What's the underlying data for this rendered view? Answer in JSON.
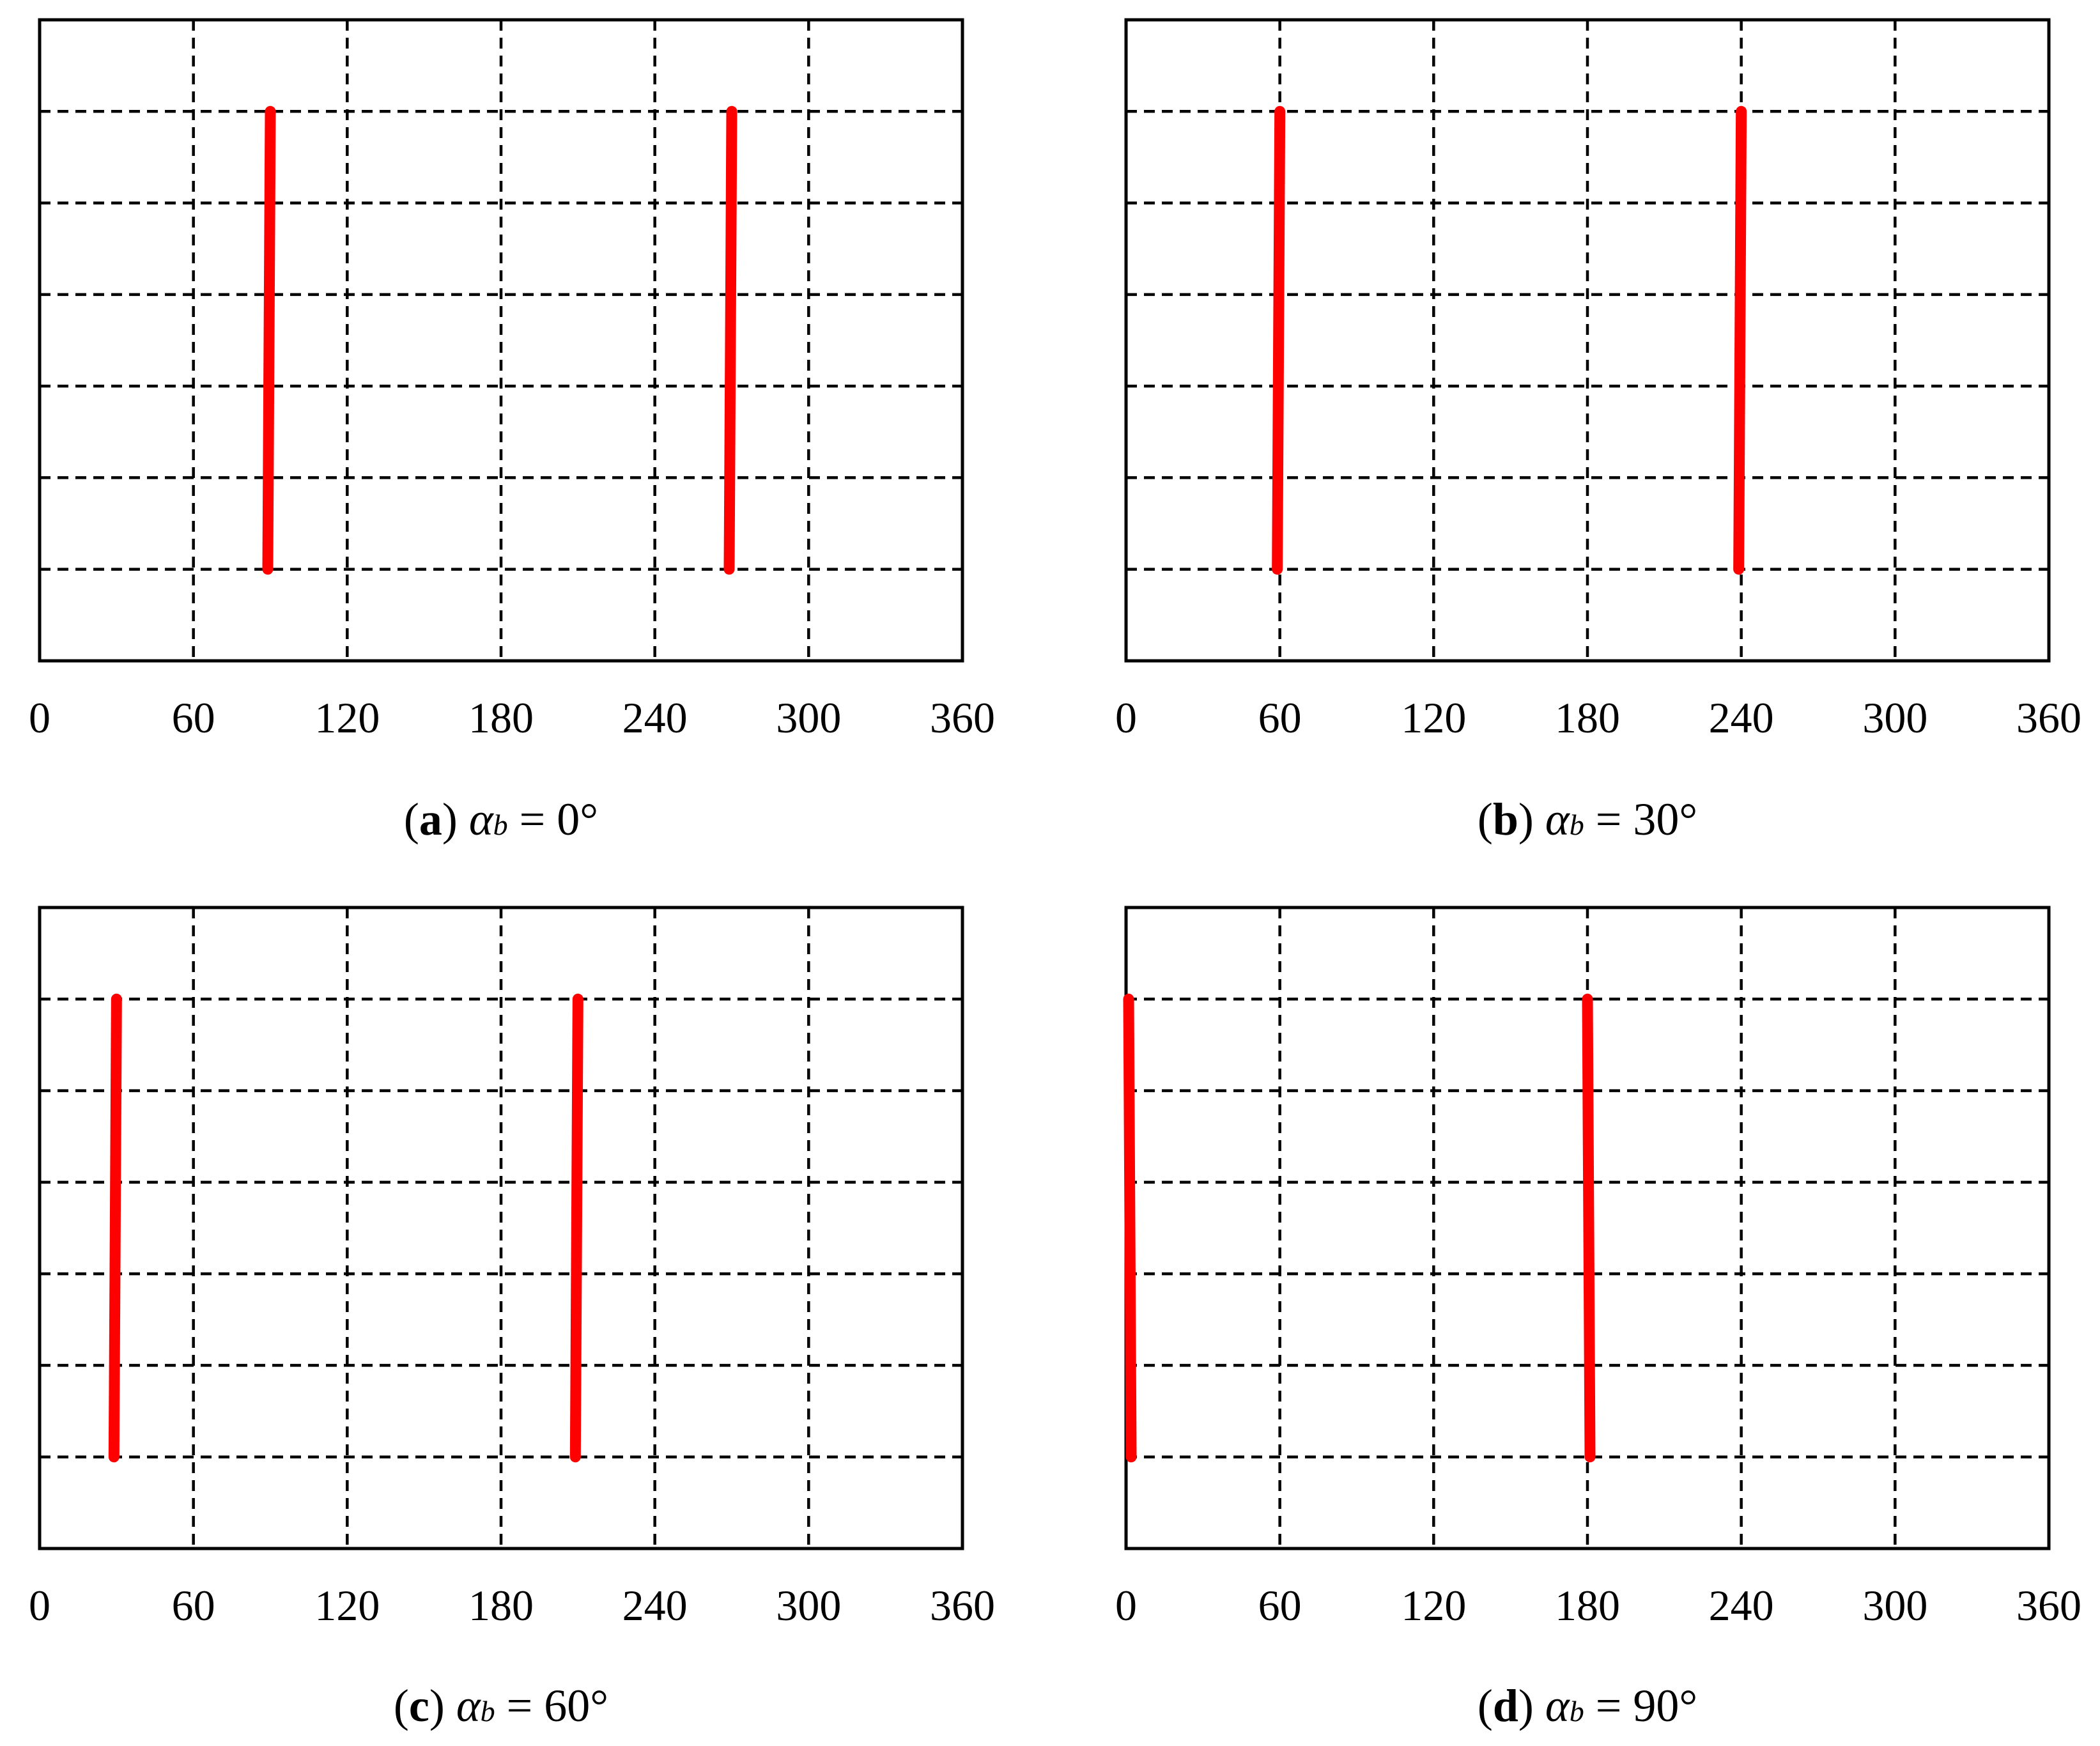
{
  "chart_data": [
    {
      "type": "line",
      "label": "a",
      "angle_symbol": "α",
      "angle_subscript": "b",
      "angle_value": "0°",
      "xlim": [
        0,
        360
      ],
      "x_ticks": [
        "0",
        "60",
        "120",
        "180",
        "240",
        "300",
        "360"
      ],
      "ylim": [
        0,
        7
      ],
      "grid": true,
      "line_color": "#ff0000",
      "lines": [
        {
          "x_top": 90,
          "x_bottom": 89,
          "y_top": 6,
          "y_bottom": 1
        },
        {
          "x_top": 270,
          "x_bottom": 269,
          "y_top": 6,
          "y_bottom": 1
        }
      ]
    },
    {
      "type": "line",
      "label": "b",
      "angle_symbol": "α",
      "angle_subscript": "b",
      "angle_value": "30°",
      "xlim": [
        0,
        360
      ],
      "x_ticks": [
        "0",
        "60",
        "120",
        "180",
        "240",
        "300",
        "360"
      ],
      "ylim": [
        0,
        7
      ],
      "grid": true,
      "line_color": "#ff0000",
      "lines": [
        {
          "x_top": 60,
          "x_bottom": 59,
          "y_top": 6,
          "y_bottom": 1
        },
        {
          "x_top": 240,
          "x_bottom": 239,
          "y_top": 6,
          "y_bottom": 1
        }
      ]
    },
    {
      "type": "line",
      "label": "c",
      "angle_symbol": "α",
      "angle_subscript": "b",
      "angle_value": "60°",
      "xlim": [
        0,
        360
      ],
      "x_ticks": [
        "0",
        "60",
        "120",
        "180",
        "240",
        "300",
        "360"
      ],
      "ylim": [
        0,
        7
      ],
      "grid": true,
      "line_color": "#ff0000",
      "lines": [
        {
          "x_top": 30,
          "x_bottom": 29,
          "y_top": 6,
          "y_bottom": 1
        },
        {
          "x_top": 210,
          "x_bottom": 209,
          "y_top": 6,
          "y_bottom": 1
        }
      ]
    },
    {
      "type": "line",
      "label": "d",
      "angle_symbol": "α",
      "angle_subscript": "b",
      "angle_value": "90°",
      "xlim": [
        0,
        360
      ],
      "x_ticks": [
        "0",
        "60",
        "120",
        "180",
        "240",
        "300",
        "360"
      ],
      "ylim": [
        0,
        7
      ],
      "grid": true,
      "line_color": "#ff0000",
      "lines": [
        {
          "x_top": 1,
          "x_bottom": 2,
          "y_top": 6,
          "y_bottom": 1
        },
        {
          "x_top": 180,
          "x_bottom": 181,
          "y_top": 6,
          "y_bottom": 1
        }
      ]
    }
  ]
}
